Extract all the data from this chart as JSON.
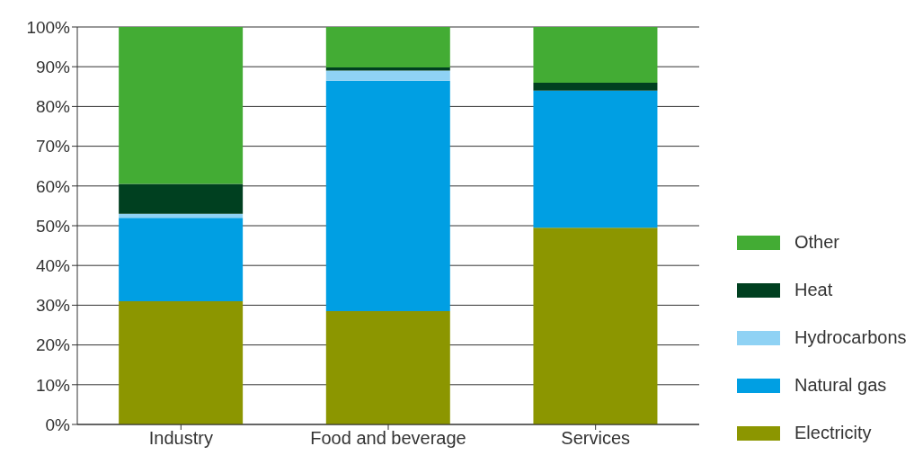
{
  "chart_data": {
    "type": "bar",
    "stacked": true,
    "categories": [
      "Industry",
      "Food and beverage",
      "Services"
    ],
    "series": [
      {
        "name": "Electricity",
        "color": "#8c9600",
        "values": [
          31,
          28.5,
          49.5
        ]
      },
      {
        "name": "Natural gas",
        "color": "#009fe3",
        "values": [
          21,
          58,
          34.5
        ]
      },
      {
        "name": "Hydrocarbons",
        "color": "#8fd2f4",
        "values": [
          1,
          2.5,
          0
        ]
      },
      {
        "name": "Heat",
        "color": "#004020",
        "values": [
          7.5,
          0.8,
          2
        ]
      },
      {
        "name": "Other",
        "color": "#43ac34",
        "values": [
          39.5,
          10.2,
          14
        ]
      }
    ],
    "ylim": [
      0,
      100
    ],
    "yticks": [
      {
        "value": 0,
        "label": "0%"
      },
      {
        "value": 10,
        "label": "10%"
      },
      {
        "value": 20,
        "label": "20%"
      },
      {
        "value": 30,
        "label": "30%"
      },
      {
        "value": 40,
        "label": "40%"
      },
      {
        "value": 50,
        "label": "50%"
      },
      {
        "value": 60,
        "label": "60%"
      },
      {
        "value": 70,
        "label": "70%"
      },
      {
        "value": 80,
        "label": "80%"
      },
      {
        "value": 90,
        "label": "90%"
      },
      {
        "value": 100,
        "label": "100%"
      }
    ],
    "grid": "y",
    "legend": "right"
  }
}
